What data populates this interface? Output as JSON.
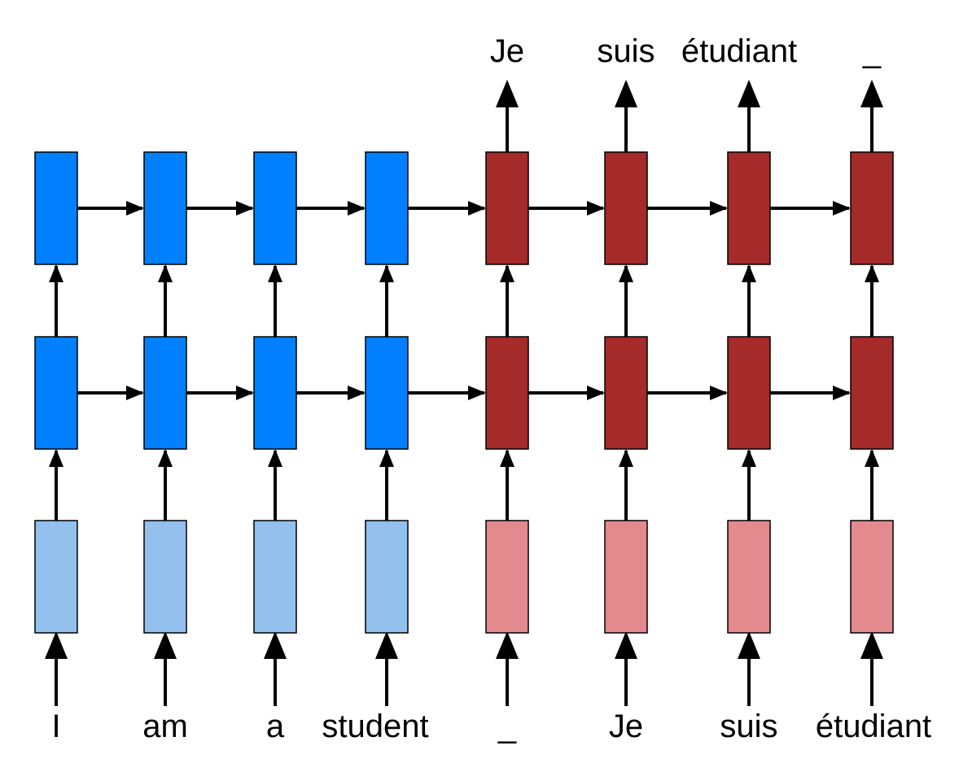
{
  "colors": {
    "encoder_hidden": "#0080ff",
    "encoder_embedding": "#93c0ec",
    "decoder_hidden": "#a52a2a",
    "decoder_embedding": "#e28a8e",
    "arrow": "#000000"
  },
  "encoder": {
    "inputs": [
      "I",
      "am",
      "a",
      "student"
    ]
  },
  "decoder": {
    "inputs": [
      "_",
      "Je",
      "suis",
      "étudiant"
    ],
    "outputs": [
      "Je",
      "suis",
      "étudiant",
      "_"
    ]
  }
}
